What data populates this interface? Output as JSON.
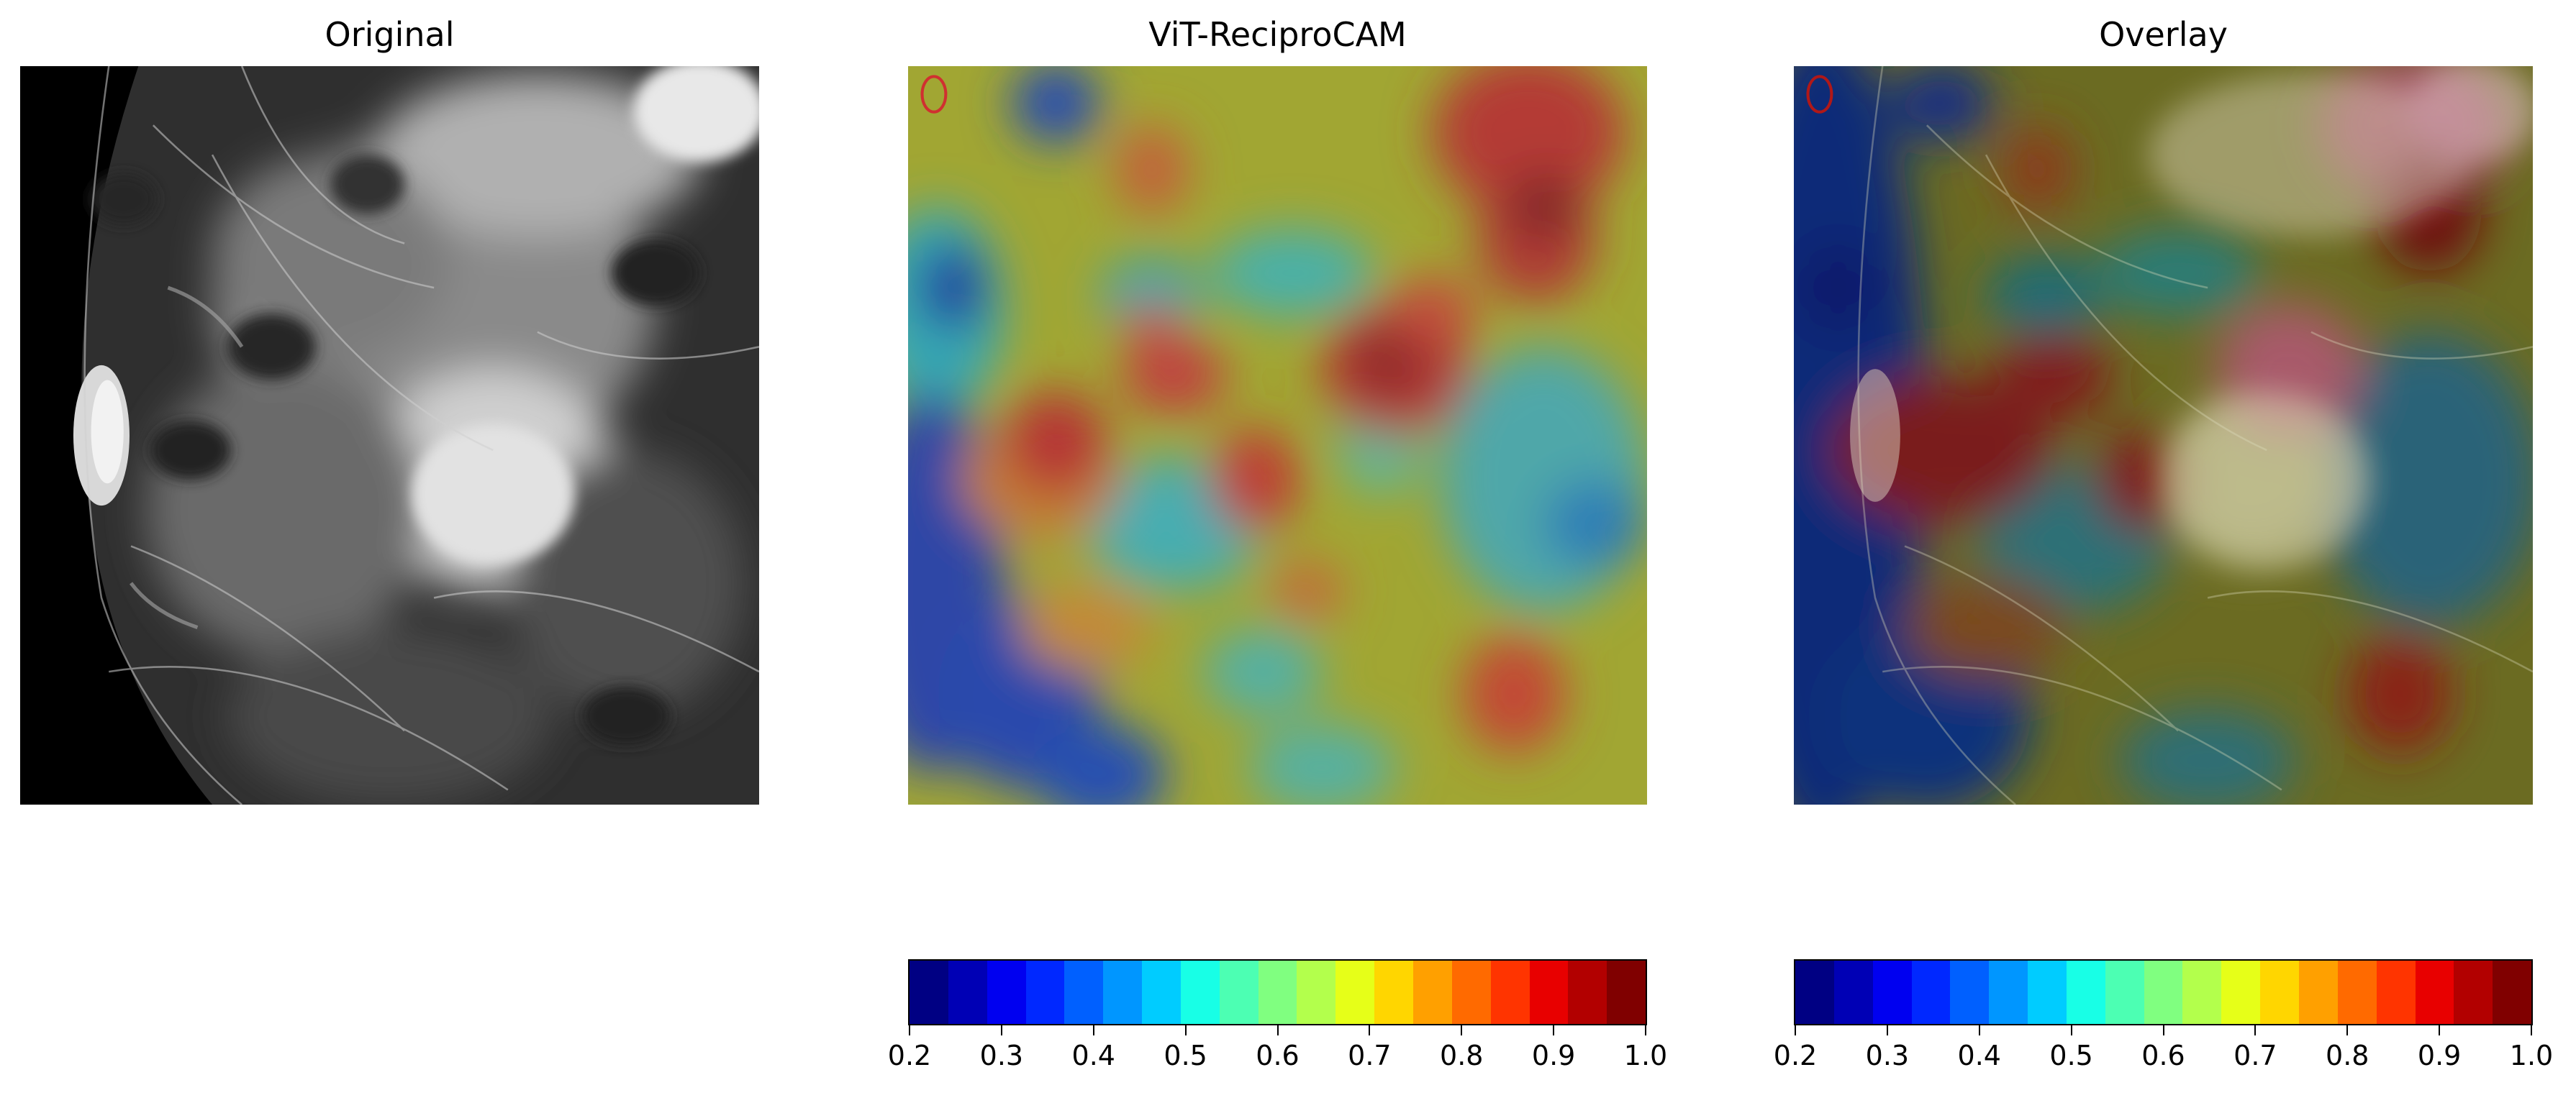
{
  "panels": {
    "original": {
      "title": "Original"
    },
    "cam": {
      "title": "ViT-ReciproCAM"
    },
    "overlay": {
      "title": "Overlay"
    }
  },
  "colorbars": {
    "ticks": [
      "0.2",
      "0.3",
      "0.4",
      "0.5",
      "0.6",
      "0.7",
      "0.8",
      "0.9",
      "1.0"
    ],
    "min": 0.2,
    "max": 1.0,
    "colormap": "jet",
    "bin_colors": [
      "#000083",
      "#0000b5",
      "#0000f0",
      "#0028ff",
      "#0060ff",
      "#0096ff",
      "#00ccff",
      "#18ffe6",
      "#4cffb3",
      "#80ff80",
      "#b3ff4c",
      "#e6ff18",
      "#ffd600",
      "#ffa000",
      "#ff6a00",
      "#ff3400",
      "#e80000",
      "#b20000",
      "#800000"
    ]
  },
  "chart_data": [
    {
      "type": "heatmap",
      "title": "ViT-ReciproCAM",
      "colorbar": {
        "min": 0.2,
        "max": 1.0,
        "colormap": "jet"
      }
    },
    {
      "type": "heatmap",
      "title": "Overlay",
      "colorbar": {
        "min": 0.2,
        "max": 1.0,
        "colormap": "jet"
      }
    }
  ],
  "colors": {
    "marker": "#d03030",
    "background": "#ffffff"
  }
}
